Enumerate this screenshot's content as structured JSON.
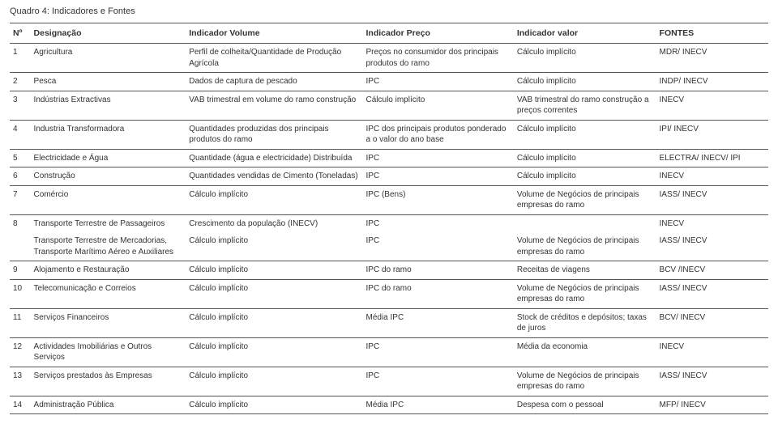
{
  "title": "Quadro 4: Indicadores e Fontes",
  "headers": {
    "n": "Nº",
    "desig": "Designação",
    "vol": "Indicador Volume",
    "preco": "Indicador Preço",
    "valor": "Indicador valor",
    "fontes": "FONTES"
  },
  "rows": [
    {
      "n": "1",
      "d": "Agricultura",
      "v": "Perfil de colheita/Quantidade de Produção Agrícola",
      "p": "Preços no consumidor dos principais produtos do ramo",
      "val": "Cálculo implícito",
      "f": "MDR/ INECV"
    },
    {
      "n": "2",
      "d": "Pesca",
      "v": "Dados de captura de pescado",
      "p": "IPC",
      "val": "Cálculo implícito",
      "f": "INDP/ INECV"
    },
    {
      "n": "3",
      "d": "Indústrias Extractivas",
      "v": "VAB trimestral em volume do ramo construção",
      "p": "Cálculo implícito",
      "val": "VAB trimestral do ramo construção a preços correntes",
      "f": "INECV"
    },
    {
      "n": "4",
      "d": "Industria Transformadora",
      "v": "Quantidades produzidas dos principais produtos do ramo",
      "p": "IPC dos principais produtos ponderado a o valor do ano base",
      "val": "Cálculo implícito",
      "f": "IPI/ INECV"
    },
    {
      "n": "5",
      "d": "Electricidade e Água",
      "v": "Quantidade (água e electricidade) Distribuída",
      "p": "IPC",
      "val": "Cálculo implícito",
      "f": "ELECTRA/ INECV/ IPI"
    },
    {
      "n": "6",
      "d": "Construção",
      "v": "Quantidades vendidas de Cimento (Toneladas)",
      "p": "IPC",
      "val": "Cálculo implícito",
      "f": "INECV"
    },
    {
      "n": "7",
      "d": "Comércio",
      "v": "Cálculo implícito",
      "p": "IPC (Bens)",
      "val": "Volume de Negócios de principais empresas do ramo",
      "f": "IASS/ INECV"
    },
    {
      "n": "8",
      "d_a": "Transporte Terrestre de Passageiros",
      "v_a": "Crescimento da população (INECV)",
      "p_a": "IPC",
      "val_a": "",
      "f_a": "INECV",
      "d_b": "Transporte Terrestre de Mercadorias, Transporte Marítimo Aéreo e Auxiliares",
      "v_b": "Cálculo implícito",
      "p_b": "IPC",
      "val_b": "Volume de Negócios de principais empresas do ramo",
      "f_b": "IASS/ INECV"
    },
    {
      "n": "9",
      "d": "Alojamento e Restauração",
      "v": "Cálculo implícito",
      "p": "IPC do ramo",
      "val": "Receitas de viagens",
      "f": "BCV /INECV"
    },
    {
      "n": "10",
      "d": "Telecomunicação e Correios",
      "v": "Cálculo implícito",
      "p": "IPC do ramo",
      "val": "Volume de Negócios de principais empresas do ramo",
      "f": "IASS/ INECV"
    },
    {
      "n": "11",
      "d": "Serviços Financeiros",
      "v": "Cálculo implícito",
      "p": "Média IPC",
      "val": "Stock de créditos e depósitos; taxas de juros",
      "f": "BCV/ INECV"
    },
    {
      "n": "12",
      "d": "Actividades Imobiliárias e Outros Serviços",
      "v": "Cálculo implícito",
      "p": "IPC",
      "val": "Média da economia",
      "f": "INECV"
    },
    {
      "n": "13",
      "d": "Serviços prestados às Empresas",
      "v": "Cálculo implícito",
      "p": "IPC",
      "val": "Volume de Negócios de principais empresas do ramo",
      "f": "IASS/ INECV"
    },
    {
      "n": "14",
      "d": "Administração Pública",
      "v": "Cálculo implícito",
      "p": "Média IPC",
      "val": "Despesa com o pessoal",
      "f": "MFP/ INECV"
    }
  ]
}
